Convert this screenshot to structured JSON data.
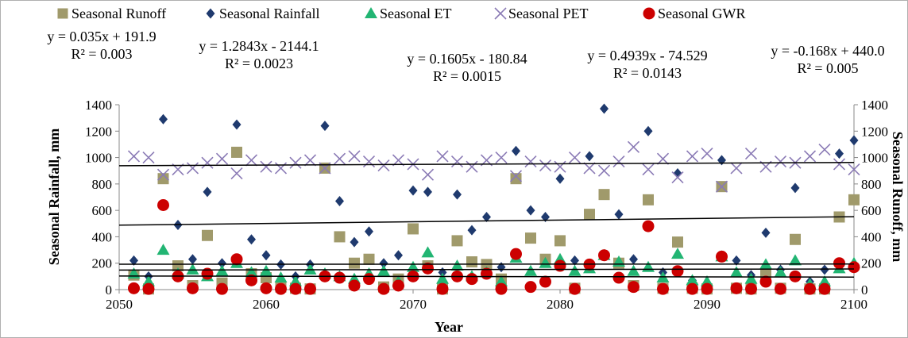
{
  "chart_data": {
    "type": "scatter",
    "xlabel": "Year",
    "ylabel": "Seasonal Rainfall, mm",
    "y2label": "Seasonal Runoff, mm",
    "xlim": [
      2050,
      2100
    ],
    "xticks": [
      2050,
      2060,
      2070,
      2080,
      2090,
      2100
    ],
    "ylim": [
      0,
      1400
    ],
    "yticks": [
      0,
      200,
      400,
      600,
      800,
      1000,
      1200,
      1400
    ],
    "y2lim": [
      0,
      1400
    ],
    "y2ticks": [
      0,
      200,
      400,
      600,
      800,
      1000,
      1200,
      1400
    ],
    "legend_position": "top",
    "series": [
      {
        "name": "Seasonal Runoff",
        "marker": "square",
        "color": "#a09a6b",
        "points": [
          [
            2051,
            110
          ],
          [
            2052,
            5
          ],
          [
            2053,
            840
          ],
          [
            2054,
            180
          ],
          [
            2055,
            30
          ],
          [
            2056,
            410
          ],
          [
            2057,
            50
          ],
          [
            2058,
            1040
          ],
          [
            2059,
            120
          ],
          [
            2060,
            90
          ],
          [
            2061,
            20
          ],
          [
            2062,
            10
          ],
          [
            2063,
            5
          ],
          [
            2064,
            920
          ],
          [
            2065,
            400
          ],
          [
            2066,
            200
          ],
          [
            2067,
            230
          ],
          [
            2068,
            20
          ],
          [
            2069,
            80
          ],
          [
            2070,
            460
          ],
          [
            2071,
            180
          ],
          [
            2072,
            5
          ],
          [
            2073,
            370
          ],
          [
            2074,
            210
          ],
          [
            2075,
            190
          ],
          [
            2076,
            80
          ],
          [
            2077,
            840
          ],
          [
            2078,
            390
          ],
          [
            2079,
            230
          ],
          [
            2080,
            370
          ],
          [
            2081,
            10
          ],
          [
            2082,
            570
          ],
          [
            2083,
            720
          ],
          [
            2084,
            200
          ],
          [
            2085,
            30
          ],
          [
            2086,
            680
          ],
          [
            2087,
            10
          ],
          [
            2088,
            360
          ],
          [
            2089,
            10
          ],
          [
            2090,
            5
          ],
          [
            2091,
            780
          ],
          [
            2092,
            10
          ],
          [
            2093,
            5
          ],
          [
            2094,
            120
          ],
          [
            2095,
            10
          ],
          [
            2096,
            380
          ],
          [
            2097,
            5
          ],
          [
            2098,
            5
          ],
          [
            2099,
            550
          ],
          [
            2100,
            680
          ]
        ],
        "trendline": {
          "equation": "y = 0.035x + 191.9",
          "r2": "R² = 0.003",
          "slope": 0.035,
          "intercept": 191.9,
          "x0": 2050
        }
      },
      {
        "name": "Seasonal Rainfall",
        "marker": "diamond",
        "color": "#1f3a6e",
        "points": [
          [
            2051,
            220
          ],
          [
            2052,
            100
          ],
          [
            2053,
            1290
          ],
          [
            2054,
            490
          ],
          [
            2055,
            230
          ],
          [
            2056,
            740
          ],
          [
            2057,
            200
          ],
          [
            2058,
            1250
          ],
          [
            2059,
            380
          ],
          [
            2060,
            260
          ],
          [
            2061,
            190
          ],
          [
            2062,
            100
          ],
          [
            2063,
            190
          ],
          [
            2064,
            1240
          ],
          [
            2065,
            670
          ],
          [
            2066,
            360
          ],
          [
            2067,
            440
          ],
          [
            2068,
            200
          ],
          [
            2069,
            260
          ],
          [
            2070,
            750
          ],
          [
            2071,
            740
          ],
          [
            2072,
            130
          ],
          [
            2073,
            720
          ],
          [
            2074,
            450
          ],
          [
            2075,
            550
          ],
          [
            2076,
            170
          ],
          [
            2077,
            1050
          ],
          [
            2078,
            600
          ],
          [
            2079,
            550
          ],
          [
            2080,
            840
          ],
          [
            2081,
            220
          ],
          [
            2082,
            1010
          ],
          [
            2083,
            1370
          ],
          [
            2084,
            570
          ],
          [
            2085,
            230
          ],
          [
            2086,
            1200
          ],
          [
            2087,
            130
          ],
          [
            2088,
            880
          ],
          [
            2089,
            70
          ],
          [
            2090,
            40
          ],
          [
            2091,
            980
          ],
          [
            2092,
            220
          ],
          [
            2093,
            110
          ],
          [
            2094,
            430
          ],
          [
            2095,
            150
          ],
          [
            2096,
            770
          ],
          [
            2097,
            60
          ],
          [
            2098,
            150
          ],
          [
            2099,
            1030
          ],
          [
            2100,
            1130
          ]
        ],
        "trendline": {
          "equation": "y = 1.2843x - 2144.1",
          "r2": "R² = 0.0023",
          "slope": 1.2843,
          "intercept": 488,
          "x0": 2050
        }
      },
      {
        "name": "Seasonal ET",
        "marker": "triangle",
        "color": "#22b573",
        "points": [
          [
            2051,
            120
          ],
          [
            2052,
            60
          ],
          [
            2053,
            300
          ],
          [
            2054,
            120
          ],
          [
            2055,
            150
          ],
          [
            2056,
            100
          ],
          [
            2057,
            140
          ],
          [
            2058,
            200
          ],
          [
            2059,
            130
          ],
          [
            2060,
            140
          ],
          [
            2061,
            90
          ],
          [
            2062,
            60
          ],
          [
            2063,
            150
          ],
          [
            2064,
            120
          ],
          [
            2065,
            100
          ],
          [
            2066,
            80
          ],
          [
            2067,
            120
          ],
          [
            2068,
            140
          ],
          [
            2069,
            60
          ],
          [
            2070,
            170
          ],
          [
            2071,
            280
          ],
          [
            2072,
            80
          ],
          [
            2073,
            180
          ],
          [
            2074,
            100
          ],
          [
            2075,
            130
          ],
          [
            2076,
            60
          ],
          [
            2077,
            240
          ],
          [
            2078,
            140
          ],
          [
            2079,
            200
          ],
          [
            2080,
            230
          ],
          [
            2081,
            140
          ],
          [
            2082,
            160
          ],
          [
            2083,
            260
          ],
          [
            2084,
            210
          ],
          [
            2085,
            140
          ],
          [
            2086,
            170
          ],
          [
            2087,
            90
          ],
          [
            2088,
            270
          ],
          [
            2089,
            70
          ],
          [
            2090,
            60
          ],
          [
            2091,
            250
          ],
          [
            2092,
            130
          ],
          [
            2093,
            80
          ],
          [
            2094,
            190
          ],
          [
            2095,
            130
          ],
          [
            2096,
            220
          ],
          [
            2097,
            40
          ],
          [
            2098,
            60
          ],
          [
            2099,
            160
          ],
          [
            2100,
            200
          ]
        ],
        "trendline": {
          "equation": "y = 0.1605x - 180.84",
          "r2": "R² = 0.0015",
          "slope": 0.1605,
          "intercept": 148,
          "x0": 2050
        }
      },
      {
        "name": "Seasonal PET",
        "marker": "x",
        "color": "#8a7ab5",
        "points": [
          [
            2051,
            1010
          ],
          [
            2052,
            1000
          ],
          [
            2053,
            870
          ],
          [
            2054,
            910
          ],
          [
            2055,
            920
          ],
          [
            2056,
            960
          ],
          [
            2057,
            990
          ],
          [
            2058,
            880
          ],
          [
            2059,
            980
          ],
          [
            2060,
            930
          ],
          [
            2061,
            920
          ],
          [
            2062,
            960
          ],
          [
            2063,
            980
          ],
          [
            2064,
            920
          ],
          [
            2065,
            990
          ],
          [
            2066,
            1010
          ],
          [
            2067,
            970
          ],
          [
            2068,
            940
          ],
          [
            2069,
            980
          ],
          [
            2070,
            950
          ],
          [
            2071,
            870
          ],
          [
            2072,
            1010
          ],
          [
            2073,
            970
          ],
          [
            2074,
            930
          ],
          [
            2075,
            980
          ],
          [
            2076,
            1000
          ],
          [
            2077,
            860
          ],
          [
            2078,
            970
          ],
          [
            2079,
            940
          ],
          [
            2080,
            930
          ],
          [
            2081,
            1000
          ],
          [
            2082,
            920
          ],
          [
            2083,
            900
          ],
          [
            2084,
            970
          ],
          [
            2085,
            1080
          ],
          [
            2086,
            910
          ],
          [
            2087,
            990
          ],
          [
            2088,
            850
          ],
          [
            2089,
            1010
          ],
          [
            2090,
            1030
          ],
          [
            2091,
            780
          ],
          [
            2092,
            920
          ],
          [
            2093,
            1030
          ],
          [
            2094,
            930
          ],
          [
            2095,
            970
          ],
          [
            2096,
            960
          ],
          [
            2097,
            1010
          ],
          [
            2098,
            1060
          ],
          [
            2099,
            950
          ],
          [
            2100,
            910
          ]
        ],
        "trendline": {
          "equation": "y = 0.4939x - 74.529",
          "r2": "R² = 0.0143",
          "slope": 0.4939,
          "intercept": 938,
          "x0": 2050
        }
      },
      {
        "name": "Seasonal GWR",
        "marker": "circle",
        "color": "#cc0000",
        "points": [
          [
            2051,
            10
          ],
          [
            2052,
            5
          ],
          [
            2053,
            640
          ],
          [
            2054,
            100
          ],
          [
            2055,
            10
          ],
          [
            2056,
            120
          ],
          [
            2057,
            5
          ],
          [
            2058,
            230
          ],
          [
            2059,
            70
          ],
          [
            2060,
            10
          ],
          [
            2061,
            5
          ],
          [
            2062,
            5
          ],
          [
            2063,
            5
          ],
          [
            2064,
            100
          ],
          [
            2065,
            90
          ],
          [
            2066,
            30
          ],
          [
            2067,
            80
          ],
          [
            2068,
            5
          ],
          [
            2069,
            30
          ],
          [
            2070,
            100
          ],
          [
            2071,
            160
          ],
          [
            2072,
            5
          ],
          [
            2073,
            100
          ],
          [
            2074,
            80
          ],
          [
            2075,
            120
          ],
          [
            2076,
            5
          ],
          [
            2077,
            270
          ],
          [
            2078,
            20
          ],
          [
            2079,
            60
          ],
          [
            2080,
            180
          ],
          [
            2081,
            5
          ],
          [
            2082,
            190
          ],
          [
            2083,
            260
          ],
          [
            2084,
            90
          ],
          [
            2085,
            20
          ],
          [
            2086,
            480
          ],
          [
            2087,
            5
          ],
          [
            2088,
            140
          ],
          [
            2089,
            5
          ],
          [
            2090,
            5
          ],
          [
            2091,
            250
          ],
          [
            2092,
            10
          ],
          [
            2093,
            5
          ],
          [
            2094,
            60
          ],
          [
            2095,
            5
          ],
          [
            2096,
            100
          ],
          [
            2097,
            5
          ],
          [
            2098,
            5
          ],
          [
            2099,
            200
          ],
          [
            2100,
            170
          ]
        ],
        "trendline": {
          "equation": "y = -0.168x + 440.0",
          "r2": "R² = 0.005",
          "slope": -0.168,
          "intercept": 103,
          "x0": 2050
        }
      }
    ]
  }
}
